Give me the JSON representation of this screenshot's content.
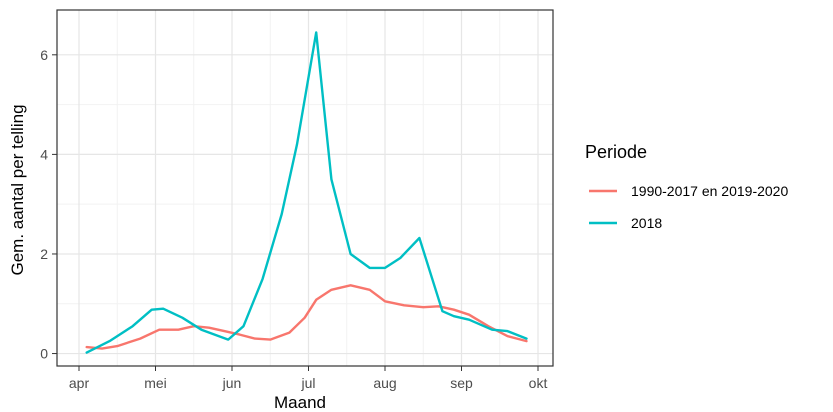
{
  "chart_data": {
    "type": "line",
    "xlabel": "Maand",
    "ylabel": "Gem. aantal per telling",
    "x_ticks": [
      "apr",
      "mei",
      "jun",
      "jul",
      "aug",
      "sep",
      "okt"
    ],
    "y_ticks": [
      0,
      2,
      4,
      6
    ],
    "xlim": [
      0,
      6
    ],
    "ylim": [
      -0.25,
      6.9
    ],
    "grid": true,
    "legend": {
      "title": "Periode",
      "position": "right"
    },
    "series": [
      {
        "name": "1990-2017 en 2019-2020",
        "color": "#F8766D",
        "x": [
          0.1,
          0.3,
          0.5,
          0.8,
          1.05,
          1.3,
          1.5,
          1.7,
          1.9,
          2.1,
          2.3,
          2.5,
          2.75,
          2.95,
          3.1,
          3.3,
          3.55,
          3.8,
          4.0,
          4.25,
          4.5,
          4.7,
          4.9,
          5.1,
          5.35,
          5.6,
          5.85
        ],
        "values": [
          0.13,
          0.1,
          0.15,
          0.3,
          0.48,
          0.48,
          0.55,
          0.52,
          0.45,
          0.38,
          0.3,
          0.28,
          0.42,
          0.72,
          1.08,
          1.28,
          1.37,
          1.28,
          1.05,
          0.97,
          0.93,
          0.95,
          0.88,
          0.78,
          0.55,
          0.35,
          0.25
        ]
      },
      {
        "name": "2018",
        "color": "#00BFC4",
        "x": [
          0.1,
          0.4,
          0.7,
          0.95,
          1.1,
          1.35,
          1.6,
          1.95,
          2.15,
          2.4,
          2.65,
          2.85,
          3.1,
          3.3,
          3.55,
          3.8,
          4.0,
          4.2,
          4.45,
          4.75,
          4.9,
          5.1,
          5.4,
          5.6,
          5.85
        ],
        "values": [
          0.02,
          0.25,
          0.55,
          0.88,
          0.9,
          0.72,
          0.48,
          0.28,
          0.55,
          1.5,
          2.8,
          4.2,
          6.45,
          3.5,
          2.0,
          1.72,
          1.72,
          1.92,
          2.32,
          0.85,
          0.75,
          0.68,
          0.48,
          0.45,
          0.3
        ]
      }
    ]
  }
}
